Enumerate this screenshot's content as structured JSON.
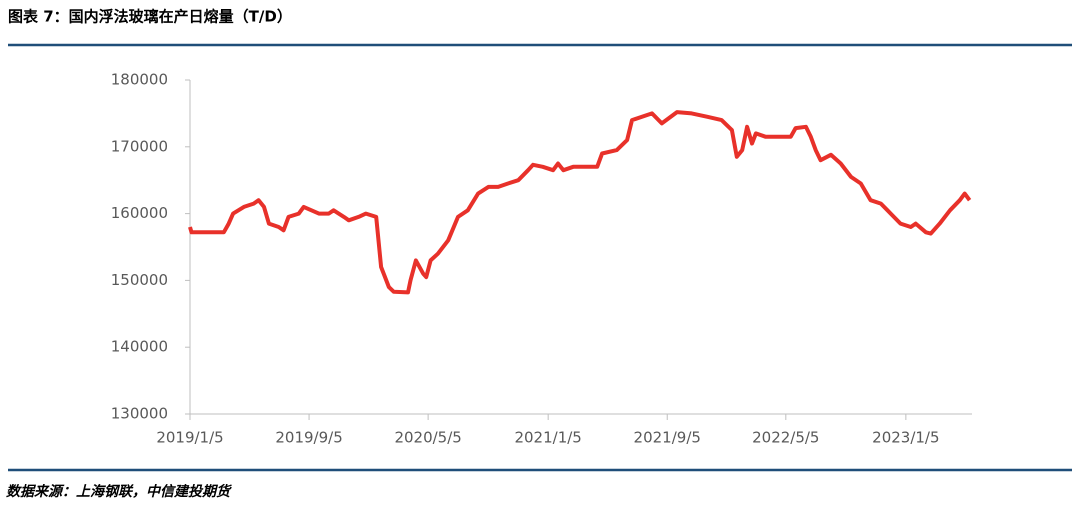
{
  "chart_data": {
    "type": "line",
    "title": "图表 7：国内浮法玻璃在产日熔量（T/D）",
    "source": "数据来源：上海钢联，中信建投期货",
    "x": [
      "2019/1/5",
      "2019/1/8",
      "2019/3/15",
      "2019/3/25",
      "2019/4/3",
      "2019/4/25",
      "2019/5/15",
      "2019/5/25",
      "2019/6/5",
      "2019/6/15",
      "2019/7/5",
      "2019/7/15",
      "2019/7/25",
      "2019/8/15",
      "2019/8/25",
      "2019/9/25",
      "2019/10/15",
      "2019/10/25",
      "2019/11/15",
      "2019/11/25",
      "2019/12/15",
      "2019/12/30",
      "2020/1/20",
      "2020/1/30",
      "2020/2/15",
      "2020/2/25",
      "2020/3/25",
      "2020/3/30",
      "2020/4/10",
      "2020/4/25",
      "2020/5/1",
      "2020/5/10",
      "2020/5/25",
      "2020/6/15",
      "2020/7/5",
      "2020/7/25",
      "2020/8/15",
      "2020/9/5",
      "2020/9/25",
      "2020/10/15",
      "2020/11/5",
      "2020/11/25",
      "2020/12/5",
      "2020/12/25",
      "2021/1/15",
      "2021/1/25",
      "2021/2/5",
      "2021/2/25",
      "2021/4/15",
      "2021/4/25",
      "2021/5/25",
      "2021/6/15",
      "2021/6/25",
      "2021/8/5",
      "2021/8/25",
      "2021/9/25",
      "2021/10/25",
      "2021/11/25",
      "2021/12/25",
      "2022/1/15",
      "2022/1/25",
      "2022/2/5",
      "2022/2/15",
      "2022/2/25",
      "2022/3/5",
      "2022/3/25",
      "2022/5/15",
      "2022/5/25",
      "2022/6/15",
      "2022/6/25",
      "2022/7/5",
      "2022/7/15",
      "2022/8/5",
      "2022/8/25",
      "2022/9/15",
      "2022/10/5",
      "2022/10/25",
      "2022/11/15",
      "2022/12/5",
      "2022/12/25",
      "2023/1/15",
      "2023/1/25",
      "2023/2/15",
      "2023/2/25",
      "2023/3/15",
      "2023/4/5",
      "2023/4/25",
      "2023/5/5",
      "2023/5/15"
    ],
    "series": [
      {
        "name": "在产日熔量",
        "color": "#e8312a",
        "values": [
          158000,
          157200,
          157200,
          158500,
          160000,
          161000,
          161500,
          162000,
          161000,
          158500,
          158000,
          157500,
          159500,
          160000,
          161000,
          160000,
          160000,
          160500,
          159500,
          159000,
          159500,
          160000,
          159500,
          152000,
          149000,
          148300,
          148200,
          150000,
          153000,
          151000,
          150500,
          153000,
          154000,
          156000,
          159500,
          160500,
          163000,
          164000,
          164000,
          164500,
          165000,
          166500,
          167300,
          167000,
          166500,
          167500,
          166500,
          167000,
          167000,
          169000,
          169500,
          171000,
          174000,
          175000,
          173500,
          175200,
          175000,
          174500,
          174000,
          172500,
          168500,
          169500,
          173000,
          170500,
          172000,
          171500,
          171500,
          172800,
          173000,
          171500,
          169500,
          168000,
          168800,
          167500,
          165500,
          164500,
          162000,
          161500,
          160000,
          158500,
          158000,
          158500,
          157200,
          157000,
          158500,
          160500,
          162000,
          163000,
          162000
        ]
      }
    ],
    "xlim": [
      "2019/1/5",
      "2023/5/20"
    ],
    "xticks": [
      "2019/1/5",
      "2019/9/5",
      "2020/5/5",
      "2021/1/5",
      "2021/9/5",
      "2022/5/5",
      "2023/1/5"
    ],
    "ylim": [
      130000,
      180000
    ],
    "yticks": [
      130000,
      140000,
      150000,
      160000,
      170000,
      180000
    ],
    "grid": false
  }
}
